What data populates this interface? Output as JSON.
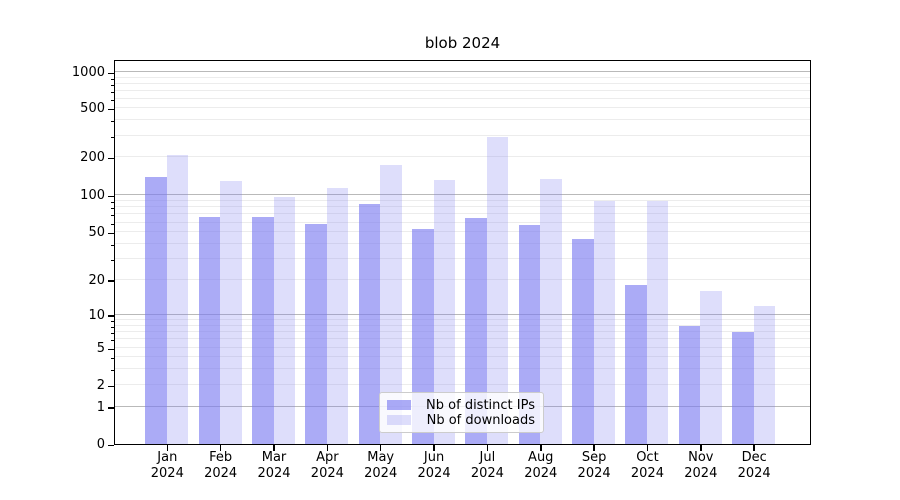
{
  "chart_data": {
    "type": "bar",
    "title": "blob 2024",
    "categories": [
      "Jan 2024",
      "Feb 2024",
      "Mar 2024",
      "Apr 2024",
      "May 2024",
      "Jun 2024",
      "Jul 2024",
      "Aug 2024",
      "Sep 2024",
      "Oct 2024",
      "Nov 2024",
      "Dec 2024"
    ],
    "series": [
      {
        "name": "Nb of distinct IPs",
        "color": "rgba(122,122,240,0.63)",
        "values": [
          140,
          66,
          67,
          58,
          85,
          53,
          65,
          57,
          44,
          18,
          8,
          7
        ]
      },
      {
        "name": "Nb of downloads",
        "color": "rgba(122,122,240,0.25)",
        "values": [
          210,
          130,
          97,
          115,
          175,
          133,
          290,
          135,
          89,
          90,
          16,
          12
        ]
      }
    ],
    "yscale": "symlog",
    "ylim": [
      0,
      1150
    ],
    "yticks": [
      {
        "value": 0,
        "label": "0",
        "pos": 0.0
      },
      {
        "value": 1,
        "label": "1",
        "pos": 0.0969
      },
      {
        "value": 2,
        "label": "2",
        "pos": 0.1525
      },
      {
        "value": 5,
        "label": "5",
        "pos": 0.2486
      },
      {
        "value": 10,
        "label": "10",
        "pos": 0.3358
      },
      {
        "value": 20,
        "label": "20",
        "pos": 0.426
      },
      {
        "value": 50,
        "label": "50",
        "pos": 0.5499
      },
      {
        "value": 100,
        "label": "100",
        "pos": 0.6462
      },
      {
        "value": 200,
        "label": "200",
        "pos": 0.7447
      },
      {
        "value": 500,
        "label": "500",
        "pos": 0.872
      },
      {
        "value": 1000,
        "label": "1000",
        "pos": 0.9655
      }
    ],
    "grid": {
      "major_values": [
        1,
        10,
        100,
        1000
      ],
      "minor_base": [
        2,
        3,
        4,
        5,
        6,
        7,
        8,
        9
      ],
      "minor_decades": [
        1,
        10,
        100
      ],
      "grid_on": true
    },
    "legend_position": "lower center"
  },
  "legend": {
    "items": [
      {
        "label": "Nb of distinct IPs"
      },
      {
        "label": "Nb of downloads"
      }
    ]
  }
}
